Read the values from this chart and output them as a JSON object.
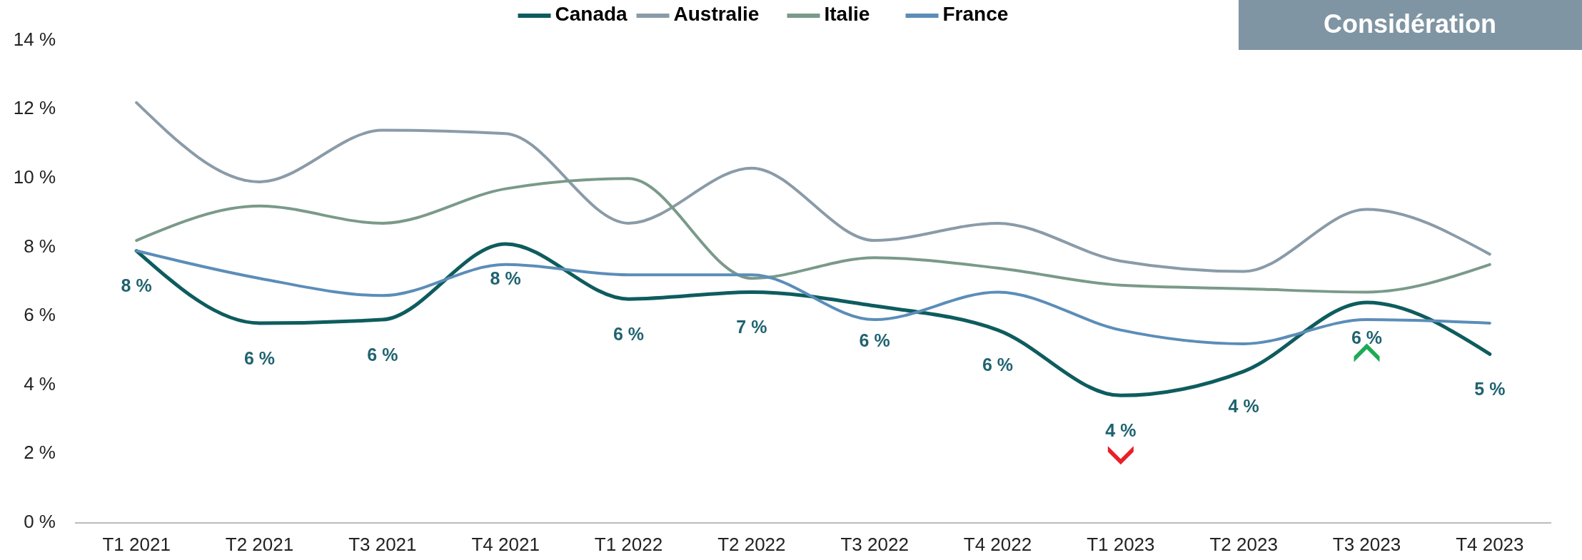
{
  "chart_data": {
    "type": "line",
    "title": "Considération",
    "categories": [
      "T1 2021",
      "T2 2021",
      "T3 2021",
      "T4 2021",
      "T1 2022",
      "T2 2022",
      "T3 2022",
      "T4 2022",
      "T1 2023",
      "T2 2023",
      "T3 2023",
      "T4 2023"
    ],
    "series": [
      {
        "name": "Canada",
        "color": "#0e5c5e",
        "values": [
          7.9,
          5.8,
          5.9,
          8.1,
          6.5,
          6.7,
          6.3,
          5.6,
          3.7,
          4.4,
          6.4,
          4.9
        ],
        "value_labels": [
          "8 %",
          "6 %",
          "6 %",
          "8 %",
          "6 %",
          "7 %",
          "6 %",
          "6 %",
          "4 %",
          "4 %",
          "6 %",
          "5 %"
        ]
      },
      {
        "name": "Australie",
        "color": "#8a9ba8",
        "values": [
          12.2,
          9.9,
          11.4,
          11.3,
          8.7,
          10.3,
          8.2,
          8.7,
          7.6,
          7.3,
          9.1,
          7.8
        ]
      },
      {
        "name": "Italie",
        "color": "#7a9a8a",
        "values": [
          8.2,
          9.2,
          8.7,
          9.7,
          10.0,
          7.1,
          7.7,
          7.4,
          6.9,
          6.8,
          6.7,
          7.5
        ]
      },
      {
        "name": "France",
        "color": "#5b8db8",
        "values": [
          7.9,
          7.1,
          6.6,
          7.5,
          7.2,
          7.2,
          5.9,
          6.7,
          5.6,
          5.2,
          5.9,
          5.8
        ]
      }
    ],
    "ylim": [
      0,
      14
    ],
    "yticks": [
      {
        "value": 0,
        "label": "0 %"
      },
      {
        "value": 2,
        "label": "2 %"
      },
      {
        "value": 4,
        "label": "4 %"
      },
      {
        "value": 6,
        "label": "6 %"
      },
      {
        "value": 8,
        "label": "8 %"
      },
      {
        "value": 10,
        "label": "10 %"
      },
      {
        "value": 12,
        "label": "12 %"
      },
      {
        "value": 14,
        "label": "14 %"
      }
    ],
    "legend": "top",
    "grid": false,
    "marker": "none",
    "line_style": "solid"
  }
}
